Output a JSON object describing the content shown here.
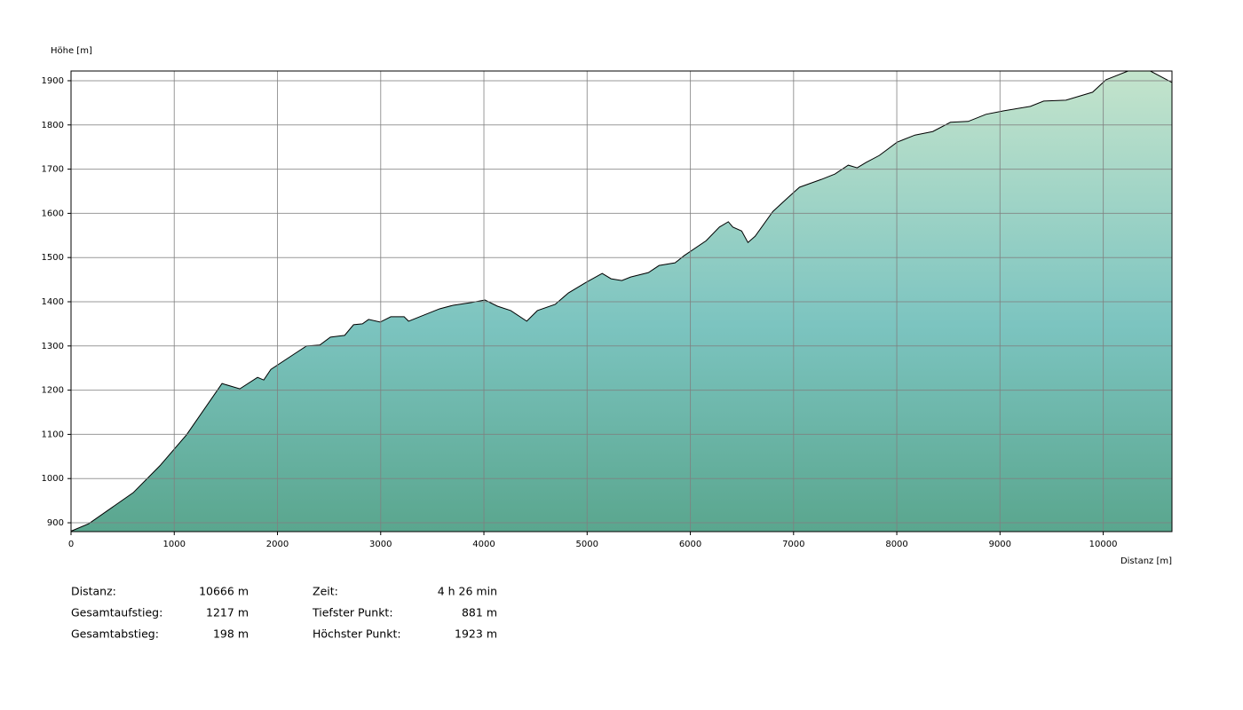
{
  "chart_data": {
    "type": "area",
    "ylabel": "Höhe [m]",
    "xlabel": "Distanz [m]",
    "x": [
      0,
      172,
      602,
      861,
      1119,
      1463,
      1635,
      1807,
      1867,
      1936,
      2151,
      2281,
      2410,
      2513,
      2651,
      2737,
      2823,
      2883,
      2995,
      3098,
      3227,
      3270,
      3399,
      3571,
      3701,
      3873,
      4010,
      4131,
      4260,
      4415,
      4518,
      4690,
      4819,
      4991,
      5146,
      5232,
      5336,
      5422,
      5594,
      5697,
      5852,
      5938,
      6153,
      6282,
      6368,
      6411,
      6497,
      6558,
      6627,
      6799,
      6971,
      7057,
      7272,
      7401,
      7530,
      7616,
      7702,
      7831,
      8003,
      8176,
      8348,
      8520,
      8692,
      8864,
      9036,
      9294,
      9423,
      9639,
      9897,
      10026,
      10241,
      10456,
      10666
    ],
    "values": [
      881,
      898,
      968,
      1029,
      1099,
      1215,
      1203,
      1229,
      1223,
      1247,
      1280,
      1300,
      1302,
      1320,
      1324,
      1348,
      1350,
      1360,
      1354,
      1366,
      1366,
      1356,
      1368,
      1384,
      1392,
      1398,
      1404,
      1390,
      1380,
      1356,
      1380,
      1394,
      1420,
      1444,
      1464,
      1452,
      1448,
      1456,
      1466,
      1482,
      1488,
      1504,
      1538,
      1569,
      1581,
      1569,
      1560,
      1534,
      1548,
      1604,
      1641,
      1659,
      1677,
      1689,
      1709,
      1703,
      1715,
      1731,
      1761,
      1777,
      1785,
      1806,
      1808,
      1824,
      1832,
      1842,
      1854,
      1856,
      1874,
      1902,
      1922,
      1922,
      1896
    ],
    "xlim": [
      0,
      10666
    ],
    "ylim": [
      880,
      1922
    ],
    "xticks": [
      0,
      1000,
      2000,
      3000,
      4000,
      5000,
      6000,
      7000,
      8000,
      9000,
      10000
    ],
    "yticks": [
      900,
      1000,
      1100,
      1200,
      1300,
      1400,
      1500,
      1600,
      1700,
      1800,
      1900
    ],
    "grid": true,
    "color": "#7cc4c0"
  },
  "summary": [
    {
      "label": "Distanz:",
      "value": "10666 m"
    },
    {
      "label": "Gesamtaufstieg:",
      "value": "1217 m"
    },
    {
      "label": "Gesamtabstieg:",
      "value": "198 m"
    },
    {
      "label": "Zeit:",
      "value": "4 h 26 min"
    },
    {
      "label": "Tiefster Punkt:",
      "value": "881 m"
    },
    {
      "label": "Höchster Punkt:",
      "value": "1923 m"
    }
  ]
}
